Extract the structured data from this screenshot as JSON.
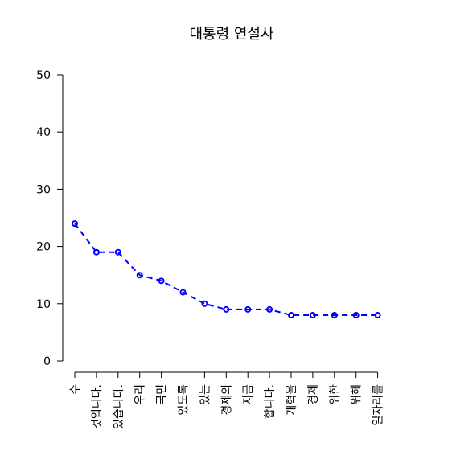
{
  "chart_data": {
    "type": "line",
    "title": "대통령 연설사",
    "xlabel": "",
    "ylabel": "",
    "categories": [
      "수",
      "것입니다.",
      "있습니다.",
      "우리",
      "국민",
      "있도록",
      "있는",
      "경제의",
      "지금",
      "합니다.",
      "개혁을",
      "경제",
      "위한",
      "위해",
      "일자리를"
    ],
    "values": [
      24,
      19,
      19,
      15,
      14,
      12,
      10,
      9,
      9,
      9,
      8,
      8,
      8,
      8,
      8
    ],
    "ylim": [
      0,
      50
    ],
    "yticks": [
      0,
      10,
      20,
      30,
      40,
      50
    ],
    "grid": false,
    "line_style": "dashed",
    "marker": "open-circle",
    "color": "#0000ff"
  }
}
